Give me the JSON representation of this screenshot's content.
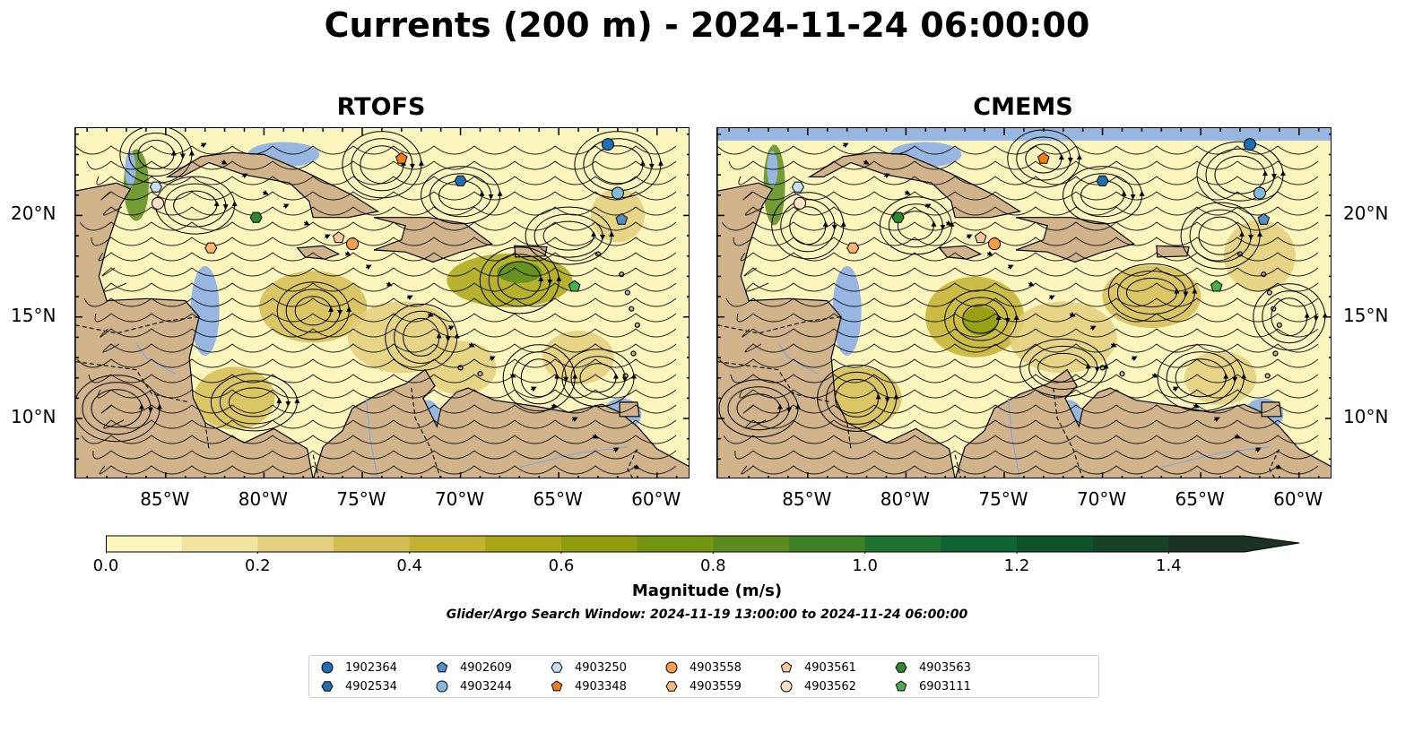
{
  "title": "Currents (200 m) - 2024-11-24 06:00:00",
  "panels": [
    {
      "name": "RTOFS"
    },
    {
      "name": "CMEMS"
    }
  ],
  "axes": {
    "lon_ticks": [
      "85°W",
      "80°W",
      "75°W",
      "70°W",
      "65°W",
      "60°W"
    ],
    "lat_ticks": [
      "20°N",
      "15°N",
      "10°N"
    ]
  },
  "colorbar": {
    "label": "Magnitude (m/s)",
    "ticks": [
      "0.0",
      "0.2",
      "0.4",
      "0.6",
      "0.8",
      "1.0",
      "1.2",
      "1.4"
    ],
    "range": [
      0,
      1.5
    ],
    "extend": "max",
    "colors": [
      "#fbf5be",
      "#f1e3a0",
      "#e3cf7e",
      "#d4bd55",
      "#c2b230",
      "#a9a618",
      "#8f9c0d",
      "#739510",
      "#5a8c1d",
      "#3e8125",
      "#1f7330",
      "#0d6331",
      "#0e532b",
      "#164228",
      "#1a3222"
    ]
  },
  "search_window": "Glider/Argo Search Window: 2024-11-19 13:00:00 to 2024-11-24 06:00:00",
  "colors": {
    "ocean": "#97b6e1",
    "land": "#d2b48c",
    "low_speed": "#fbf5be",
    "mid_speed": "#c2b230",
    "high_speed": "#3e8125"
  },
  "legend": [
    {
      "id": "1902364",
      "marker": "circle",
      "color": "#1f6fb4"
    },
    {
      "id": "4902534",
      "marker": "hexagon",
      "color": "#1f6fb4"
    },
    {
      "id": "4902609",
      "marker": "pentagon",
      "color": "#4f8fcc"
    },
    {
      "id": "4903244",
      "marker": "circle",
      "color": "#82b8e2"
    },
    {
      "id": "4903250",
      "marker": "hexagon",
      "color": "#c6e0f4"
    },
    {
      "id": "4903348",
      "marker": "pentagon",
      "color": "#f07d1c"
    },
    {
      "id": "4903558",
      "marker": "circle",
      "color": "#f59e4b"
    },
    {
      "id": "4903559",
      "marker": "hexagon",
      "color": "#fbb676"
    },
    {
      "id": "4903561",
      "marker": "pentagon",
      "color": "#fcc89b"
    },
    {
      "id": "4903562",
      "marker": "circle",
      "color": "#fde1c5"
    },
    {
      "id": "4903563",
      "marker": "hexagon",
      "color": "#2c8a2c"
    },
    {
      "id": "6903111",
      "marker": "pentagon",
      "color": "#48b04a"
    }
  ],
  "floats_rtofs": [
    {
      "id": "1902364",
      "lon": -62.5,
      "lat": 23.5
    },
    {
      "id": "4902534",
      "lon": -70.0,
      "lat": 21.7
    },
    {
      "id": "4902609",
      "lon": -61.8,
      "lat": 19.8
    },
    {
      "id": "4903244",
      "lon": -62.0,
      "lat": 21.1
    },
    {
      "id": "4903250",
      "lon": -85.5,
      "lat": 21.4
    },
    {
      "id": "4903348",
      "lon": -73.0,
      "lat": 22.8
    },
    {
      "id": "4903558",
      "lon": -75.5,
      "lat": 18.6
    },
    {
      "id": "4903559",
      "lon": -82.7,
      "lat": 18.4
    },
    {
      "id": "4903561",
      "lon": -76.2,
      "lat": 18.9
    },
    {
      "id": "4903562",
      "lon": -85.4,
      "lat": 20.6
    },
    {
      "id": "4903563",
      "lon": -80.4,
      "lat": 19.9
    },
    {
      "id": "6903111",
      "lon": -64.2,
      "lat": 16.5
    }
  ],
  "floats_cmems": [
    {
      "id": "1902364",
      "lon": -62.5,
      "lat": 23.5
    },
    {
      "id": "4902534",
      "lon": -70.0,
      "lat": 21.7
    },
    {
      "id": "4902609",
      "lon": -61.8,
      "lat": 19.8
    },
    {
      "id": "4903244",
      "lon": -62.0,
      "lat": 21.1
    },
    {
      "id": "4903250",
      "lon": -85.5,
      "lat": 21.4
    },
    {
      "id": "4903348",
      "lon": -73.0,
      "lat": 22.8
    },
    {
      "id": "4903558",
      "lon": -75.5,
      "lat": 18.6
    },
    {
      "id": "4903559",
      "lon": -82.7,
      "lat": 18.4
    },
    {
      "id": "4903561",
      "lon": -76.2,
      "lat": 18.9
    },
    {
      "id": "4903562",
      "lon": -85.4,
      "lat": 20.6
    },
    {
      "id": "4903563",
      "lon": -80.4,
      "lat": 19.9
    },
    {
      "id": "6903111",
      "lon": -64.2,
      "lat": 16.5
    }
  ]
}
